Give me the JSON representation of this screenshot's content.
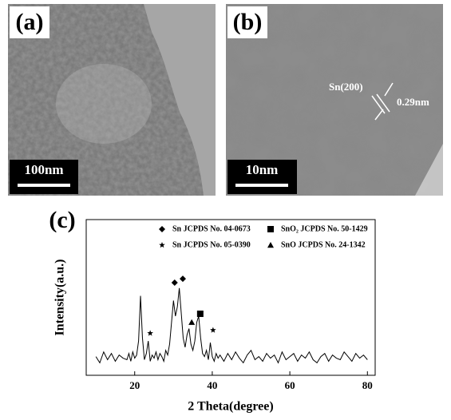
{
  "panels": [
    {
      "label": "(a)",
      "scale_bar": "100nm"
    },
    {
      "label": "(b)",
      "scale_bar": "10nm",
      "lattice_plane": "Sn(200)",
      "spacing": "0.29nm"
    }
  ],
  "chart_data": {
    "type": "line",
    "label": "(c)",
    "x_label": "2 Theta(degree)",
    "y_label": "Intensity(a.u.)",
    "xlim": [
      7.5,
      82
    ],
    "ylim": [
      0,
      100
    ],
    "xticks": [
      20,
      40,
      60,
      80
    ],
    "color": "#000000",
    "x": [
      10,
      11,
      12,
      13,
      14,
      15,
      16,
      17,
      18,
      18.5,
      19,
      19.5,
      20,
      20.5,
      21,
      21.5,
      22,
      22.5,
      23,
      23.5,
      24,
      24.5,
      25,
      25.5,
      26,
      26.5,
      27,
      27.5,
      28,
      28.5,
      29,
      29.5,
      30,
      30.5,
      31,
      31.5,
      32,
      32.5,
      33,
      33.5,
      34,
      34.5,
      35,
      35.5,
      36,
      36.5,
      37,
      37.5,
      38,
      38.5,
      39,
      39.5,
      40,
      40.5,
      41,
      41.5,
      42,
      43,
      44,
      45,
      46,
      47,
      48,
      49,
      50,
      51,
      52,
      53,
      54,
      55,
      56,
      57,
      58,
      59,
      60,
      61,
      62,
      63,
      64,
      65,
      66,
      67,
      68,
      69,
      70,
      71,
      72,
      73,
      74,
      75,
      76,
      77,
      78,
      79,
      80
    ],
    "values": [
      12,
      8,
      15,
      10,
      14,
      9,
      13,
      11,
      10,
      14,
      9,
      15,
      11,
      13,
      22,
      51,
      24,
      10,
      14,
      22,
      9,
      13,
      11,
      15,
      10,
      14,
      12,
      9,
      16,
      13,
      20,
      34,
      48,
      38,
      44,
      56,
      40,
      24,
      18,
      26,
      30,
      20,
      16,
      22,
      34,
      38,
      24,
      14,
      12,
      16,
      10,
      21,
      12,
      9,
      14,
      11,
      13,
      9,
      14,
      10,
      15,
      11,
      8,
      13,
      16,
      10,
      12,
      9,
      14,
      11,
      13,
      8,
      15,
      10,
      12,
      14,
      9,
      13,
      11,
      15,
      10,
      8,
      12,
      14,
      9,
      13,
      11,
      10,
      15,
      12,
      9,
      14,
      11,
      13,
      10
    ],
    "phases": [
      {
        "name": "Sn JCPDS No. 04-0673",
        "symbol": "diamond",
        "x": [
          30.3,
          32.4
        ],
        "y": [
          59.5,
          62
        ]
      },
      {
        "name": "Sn JCPDS No. 05-0390",
        "symbol": "star",
        "x": [
          24,
          40.2
        ],
        "y": [
          27,
          29
        ]
      },
      {
        "name": "SnO₂ JCPDS No. 50-1429",
        "symbol": "square",
        "x": [
          36.9
        ],
        "y": [
          39.5
        ]
      },
      {
        "name": "SnO JCPDS No. 24-1342",
        "symbol": "triangle",
        "x": [
          34.7
        ],
        "y": [
          34
        ]
      }
    ]
  }
}
